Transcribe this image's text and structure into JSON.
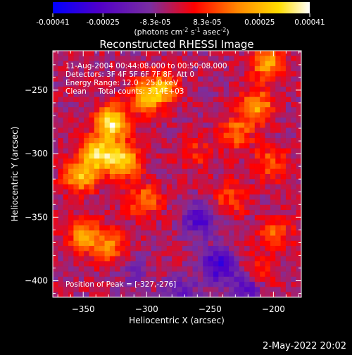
{
  "chart_data": {
    "type": "heatmap",
    "title": "Reconstructed RHESSI Image",
    "colorbar": {
      "tick_labels": [
        "-0.00041",
        "-0.00025",
        "-8.3e-05",
        "8.3e-05",
        "0.00025",
        "0.00041"
      ],
      "tick_values": [
        -0.00041,
        -0.00025,
        -8.3e-05,
        8.3e-05,
        0.00025,
        0.00041
      ],
      "range": [
        -0.00041,
        0.00041
      ],
      "unit_parts": {
        "a": "(photons cm",
        "b": "-2",
        "c": " s",
        "d": "-1",
        "e": " asec",
        "f": "-2",
        "g": ")"
      },
      "colors": [
        "#0000ff",
        "#5000c8",
        "#7a2ea0",
        "#ff0000",
        "#ff8800",
        "#ffdd00",
        "#ffffff"
      ]
    },
    "xlabel": "Heliocentric X (arcsec)",
    "ylabel": "Heliocentric Y (arcsec)",
    "xlim": [
      -374,
      -178
    ],
    "ylim": [
      -413,
      -219
    ],
    "x_ticks": [
      -350,
      -300,
      -250,
      -200
    ],
    "y_ticks": [
      -400,
      -350,
      -300,
      -250
    ],
    "x_tick_labels": [
      "−350",
      "−300",
      "−250",
      "−200"
    ],
    "y_tick_labels": [
      "−400",
      "−350",
      "−300",
      "−250"
    ],
    "annotations": [
      "11-Aug-2004 00:44:08.000 to 00:50:08.000",
      "Detectors: 3F 4F 5F 6F 7F 8F, Att 0",
      "Energy Range: 12.0 - 25.0 keV",
      "Clean     Total counts: 3.14E+03"
    ],
    "peak_label": "Position of Peak = [-327,-276]",
    "peak": [
      -327,
      -276
    ],
    "hot_regions": [
      {
        "x": -327,
        "y": -276,
        "value": 0.00041
      },
      {
        "x": -338,
        "y": -300,
        "value": 0.00036
      },
      {
        "x": -318,
        "y": -306,
        "value": 0.00034
      },
      {
        "x": -352,
        "y": -318,
        "value": 0.0003
      },
      {
        "x": -300,
        "y": -256,
        "value": 0.00027
      },
      {
        "x": -287,
        "y": -248,
        "value": 0.00024
      },
      {
        "x": -349,
        "y": -364,
        "value": 0.00025
      },
      {
        "x": -330,
        "y": -373,
        "value": 0.00021
      },
      {
        "x": -302,
        "y": -337,
        "value": 0.0002
      },
      {
        "x": -205,
        "y": -229,
        "value": 0.00028
      },
      {
        "x": -213,
        "y": -263,
        "value": 0.00026
      },
      {
        "x": -230,
        "y": -284,
        "value": 0.0002
      },
      {
        "x": -202,
        "y": -308,
        "value": 0.00017
      },
      {
        "x": -234,
        "y": -336,
        "value": 0.00014
      },
      {
        "x": -198,
        "y": -362,
        "value": 0.00016
      },
      {
        "x": -212,
        "y": -392,
        "value": 0.00013
      },
      {
        "x": -262,
        "y": -300,
        "value": 0.00011
      }
    ],
    "cold_regions": [
      {
        "x": -258,
        "y": -352,
        "value": -0.00022
      },
      {
        "x": -244,
        "y": -388,
        "value": -0.00026
      },
      {
        "x": -221,
        "y": -405,
        "value": -0.00021
      },
      {
        "x": -272,
        "y": -408,
        "value": -0.00014
      },
      {
        "x": -310,
        "y": -396,
        "value": -9e-05
      }
    ]
  },
  "footer": {
    "timestamp": "2-May-2022 20:02"
  }
}
